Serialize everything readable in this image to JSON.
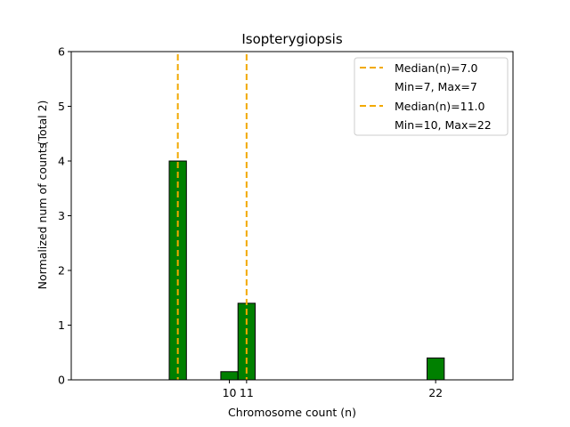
{
  "chart_data": {
    "type": "bar",
    "title": "Isopterygiopsis",
    "xlabel": "Chromosome count (n)",
    "ylabel": "Normalized num of counts",
    "ylabel_note": "(Total 2)",
    "xlim": [
      0.8,
      26.5
    ],
    "ylim": [
      0,
      6
    ],
    "x_ticks": [
      10,
      11,
      22
    ],
    "y_ticks": [
      0,
      1,
      2,
      3,
      4,
      5,
      6
    ],
    "bar_width": 1,
    "bar_color": "#008000",
    "bar_edge_color": "#000000",
    "bars": [
      {
        "x": 7,
        "value": 4.0
      },
      {
        "x": 10,
        "value": 0.15
      },
      {
        "x": 11,
        "value": 1.4
      },
      {
        "x": 22,
        "value": 0.4
      }
    ],
    "median_lines": [
      {
        "x": 7,
        "color": "#f2a900",
        "legend": "Median(n)=7.0",
        "range_text": "Min=7, Max=7"
      },
      {
        "x": 11,
        "color": "#f2a900",
        "legend": "Median(n)=11.0",
        "range_text": "Min=10, Max=22"
      }
    ]
  }
}
